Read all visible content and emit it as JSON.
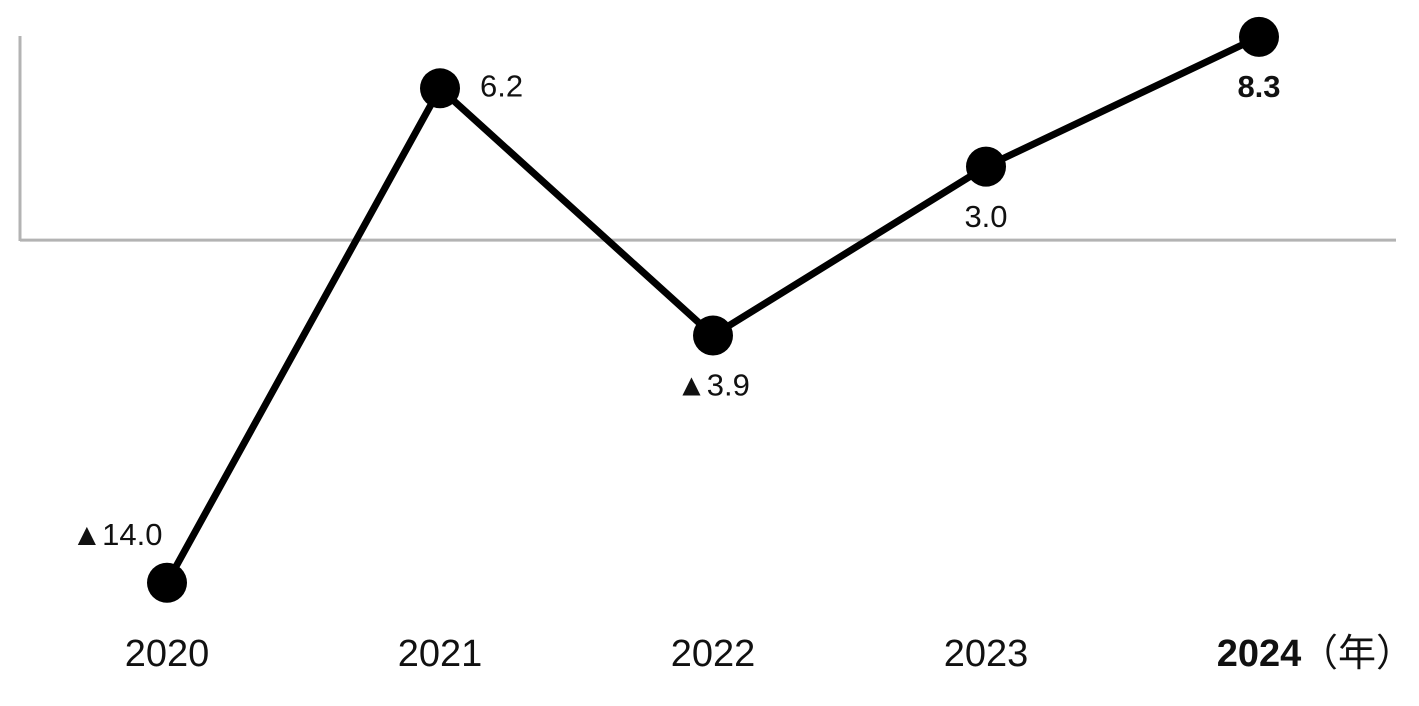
{
  "chart_data": {
    "type": "line",
    "categories": [
      "2020",
      "2021",
      "2022",
      "2023",
      "2024"
    ],
    "x_label": "（年）",
    "values": [
      -14.0,
      6.2,
      -3.9,
      3.0,
      8.3
    ],
    "value_labels": [
      "▲14.0",
      "6.2",
      "▲3.9",
      "3.0",
      "8.3"
    ],
    "color": "#000000",
    "ylim": [
      -14.5,
      8.5
    ]
  }
}
